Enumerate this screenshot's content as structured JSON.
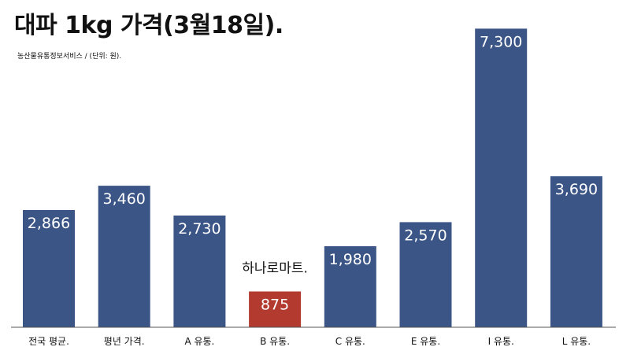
{
  "chart_data": {
    "type": "bar",
    "title": "대파 1kg 가격(3월18일).",
    "subtitle": "농산물유통정보서비스 / (단위: 원).",
    "categories": [
      "전국 평균.",
      "평년 가격.",
      "A 유통.",
      "B 유통.",
      "C 유통.",
      "E 유통.",
      "I 유통.",
      "L 유통."
    ],
    "values": [
      2866,
      3460,
      2730,
      875,
      1980,
      2570,
      7300,
      3690
    ],
    "value_labels": [
      "2,866",
      "3,460",
      "2,730",
      "875",
      "1,980",
      "2,570",
      "7,300",
      "3,690"
    ],
    "highlight_index": 3,
    "annotation": "하나로마트.",
    "ylim": [
      0,
      7500
    ],
    "grid": false,
    "colors": {
      "bar": "#3b5587",
      "highlight": "#b23a2f",
      "axis": "#555555"
    }
  }
}
